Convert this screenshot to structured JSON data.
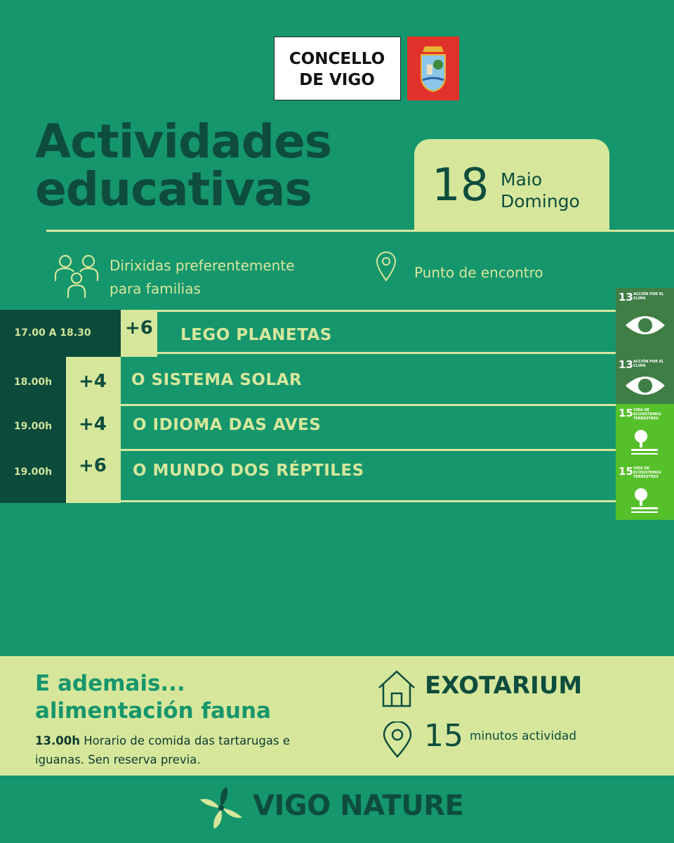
{
  "header": {
    "logo_lines": [
      "CONCELLO",
      "DE VIGO"
    ]
  },
  "title_lines": [
    "Actividades",
    "educativas"
  ],
  "date": {
    "day": "18",
    "month": "Maio",
    "weekday": "Domingo"
  },
  "audience": "Dirixidas preferentemente para familias",
  "location": "Punto de encontro",
  "activities": [
    {
      "time": "17.00 A 18.30",
      "age": "+6",
      "name": "LEGO PLANETAS",
      "sdg": {
        "number": "13",
        "label": "ACCIÓN POR EL CLIMA"
      }
    },
    {
      "time": "18.00h",
      "age": "+4",
      "name": "O SISTEMA SOLAR",
      "sdg": {
        "number": "13",
        "label": "ACCIÓN POR EL CLIMA"
      }
    },
    {
      "time": "19.00h",
      "age": "+4",
      "name": "O IDIOMA DAS AVES",
      "sdg": {
        "number": "15",
        "label": "VIDA DE ECOSISTEMAS TERRESTRES"
      }
    },
    {
      "time": "19.00h",
      "age": "+6",
      "name": "O MUNDO DOS RÉPTILES",
      "sdg": {
        "number": "15",
        "label": "VIDA DE ECOSISTEMAS TERRESTRES"
      }
    }
  ],
  "extra": {
    "title_lines": [
      "E ademais...",
      "alimentación fauna"
    ],
    "time": "13.00h",
    "text": "Horario de comida das tartarugas e iguanas. Sen reserva previa.",
    "place": "EXOTARIUM",
    "duration": "15",
    "duration_label": "minutos actividad"
  },
  "footer": "VIGO NATURE"
}
